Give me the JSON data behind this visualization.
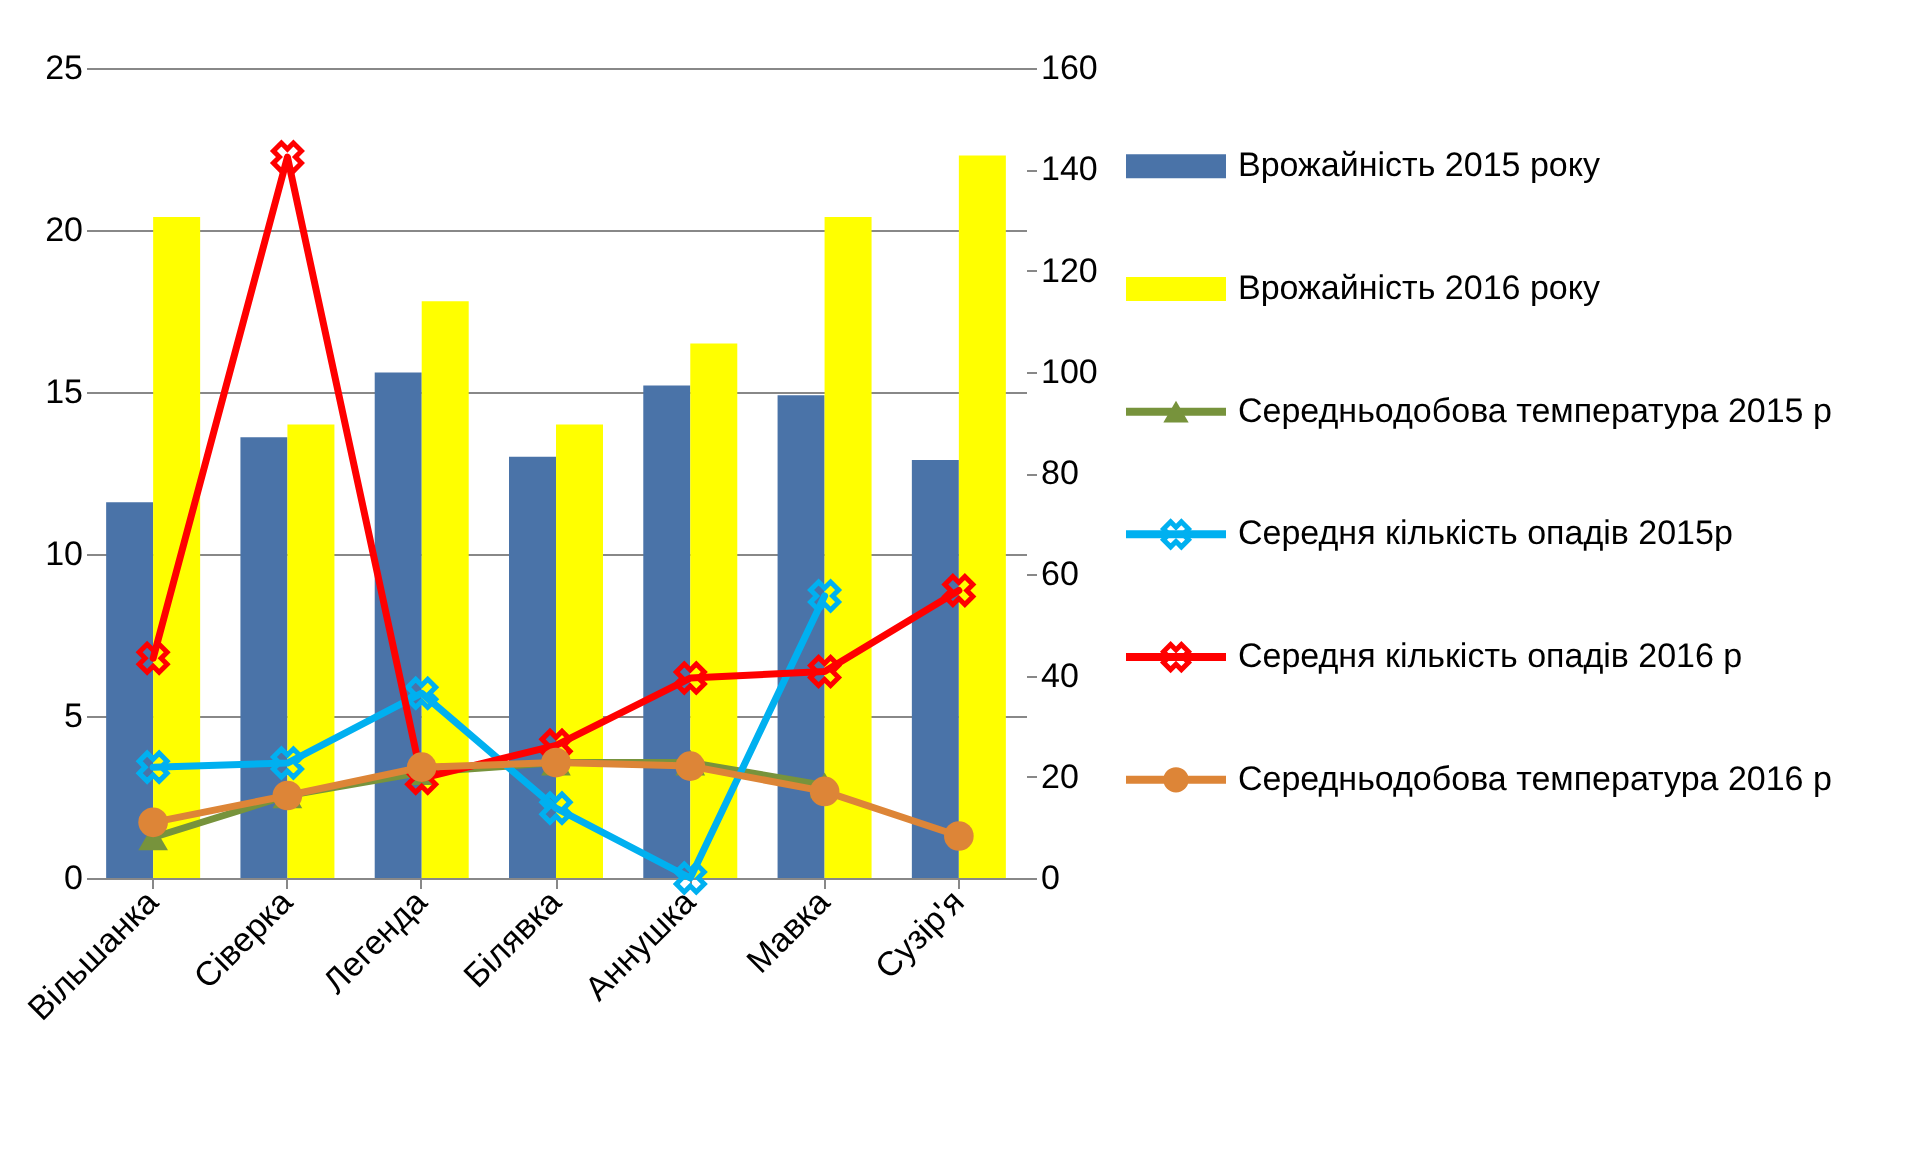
{
  "chart_data": {
    "type": "bar",
    "categories": [
      "Вільшанка",
      "Сіверка",
      "Легенда",
      "Білявка",
      "Аннушка",
      "Мавка",
      "Сузір'я"
    ],
    "series": [
      {
        "name": "Врожайність 2015 року",
        "color": "#4a73a8",
        "values": [
          11.6,
          13.6,
          15.6,
          13.0,
          15.2,
          14.9,
          12.9
        ]
      },
      {
        "name": "Врожайність 2016 року",
        "color": "#ffff00",
        "values": [
          20.4,
          14.0,
          17.8,
          14.0,
          16.5,
          20.4,
          22.3
        ]
      },
      {
        "name": "Середньодобова температура 2015 р",
        "type": "line",
        "axis": "y2",
        "marker": "triangle",
        "color": "#77933c",
        "values": [
          8,
          16.3,
          20.9,
          22.8,
          22.8,
          18.3,
          null
        ]
      },
      {
        "name": "Середня кількість опадів 2015р",
        "type": "line",
        "axis": "y2",
        "marker": "cross",
        "color": "#00b0f0",
        "values": [
          21.9,
          22.7,
          36.5,
          13.8,
          0,
          55.7,
          null
        ]
      },
      {
        "name": "Середня кількість опадів 2016 р",
        "type": "line",
        "axis": "y2",
        "marker": "cross",
        "color": "#ff0000",
        "values": [
          43.4,
          142.4,
          19.7,
          26.2,
          39.5,
          40.8,
          56.8
        ]
      },
      {
        "name": "Середньодобова температура 2016 р",
        "type": "line",
        "axis": "y2",
        "marker": "circle",
        "color": "#dd8537",
        "values": [
          11.0,
          16.3,
          21.9,
          22.8,
          22.1,
          17.1,
          8.3
        ]
      }
    ],
    "ylim": [
      0,
      25
    ],
    "yticks": [
      0,
      5,
      10,
      15,
      20,
      25
    ],
    "y2lim": [
      0,
      160
    ],
    "y2ticks": [
      0,
      20,
      40,
      60,
      80,
      100,
      120,
      140,
      160
    ],
    "grid": "y",
    "legend": "right"
  }
}
